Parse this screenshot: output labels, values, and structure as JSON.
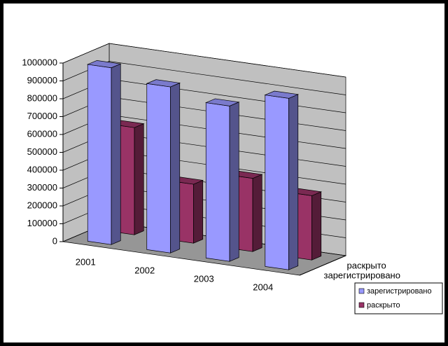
{
  "chart_data": {
    "type": "bar",
    "categories": [
      "2001",
      "2002",
      "2003",
      "2004"
    ],
    "series": [
      {
        "name": "зарегистрировано",
        "color": "#9999ff",
        "values": [
          990000,
          930000,
          870000,
          960000
        ]
      },
      {
        "name": "раскрыто",
        "color": "#993366",
        "values": [
          600000,
          330000,
          410000,
          360000
        ]
      }
    ],
    "ylim": [
      0,
      1000000
    ],
    "yticks": [
      0,
      100000,
      200000,
      300000,
      400000,
      500000,
      600000,
      700000,
      800000,
      900000,
      1000000
    ],
    "grid": true,
    "legend": "bottom-right"
  }
}
